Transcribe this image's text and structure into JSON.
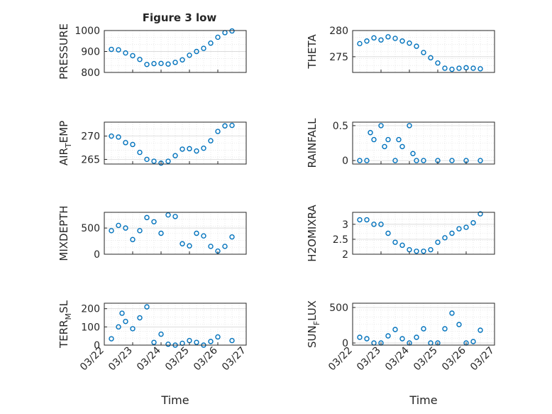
{
  "figure_title": "Figure 3 low",
  "colors": {
    "marker": "#0072BD",
    "axis": "#262626",
    "grid": "#dcdcdc",
    "background": "#ffffff"
  },
  "chart_data": [
    {
      "id": "pressure",
      "type": "scatter",
      "ylabel": "PRESSURE",
      "ylabel_sub": "",
      "ylabel_suffix": "",
      "xlabel": "",
      "xlim": [
        "03/22",
        "03/27"
      ],
      "ylim": [
        800,
        1000
      ],
      "yticks": [
        800,
        900,
        1000
      ],
      "grid": true,
      "points": [
        [
          "03/22 06:00",
          910
        ],
        [
          "03/22 12:00",
          908
        ],
        [
          "03/22 18:00",
          893
        ],
        [
          "03/23 00:00",
          880
        ],
        [
          "03/23 06:00",
          862
        ],
        [
          "03/23 12:00",
          838
        ],
        [
          "03/23 18:00",
          842
        ],
        [
          "03/24 00:00",
          843
        ],
        [
          "03/24 06:00",
          840
        ],
        [
          "03/24 12:00",
          848
        ],
        [
          "03/24 18:00",
          860
        ],
        [
          "03/25 00:00",
          882
        ],
        [
          "03/25 06:00",
          900
        ],
        [
          "03/25 12:00",
          915
        ],
        [
          "03/25 18:00",
          940
        ],
        [
          "03/26 00:00",
          968
        ],
        [
          "03/26 06:00",
          990
        ],
        [
          "03/26 12:00",
          998
        ]
      ]
    },
    {
      "id": "theta",
      "type": "scatter",
      "ylabel": "THETA",
      "ylabel_sub": "",
      "ylabel_suffix": "",
      "xlabel": "",
      "xlim": [
        "03/22",
        "03/27"
      ],
      "ylim": [
        272,
        280
      ],
      "yticks": [
        275,
        280
      ],
      "grid": true,
      "points": [
        [
          "03/22 06:00",
          277.5
        ],
        [
          "03/22 12:00",
          278
        ],
        [
          "03/22 18:00",
          278.6
        ],
        [
          "03/23 00:00",
          278.2
        ],
        [
          "03/23 06:00",
          278.8
        ],
        [
          "03/23 12:00",
          278.5
        ],
        [
          "03/23 18:00",
          278
        ],
        [
          "03/24 00:00",
          277.6
        ],
        [
          "03/24 06:00",
          277
        ],
        [
          "03/24 12:00",
          275.8
        ],
        [
          "03/24 18:00",
          274.8
        ],
        [
          "03/25 00:00",
          273.8
        ],
        [
          "03/25 06:00",
          272.8
        ],
        [
          "03/25 12:00",
          272.6
        ],
        [
          "03/25 18:00",
          272.8
        ],
        [
          "03/26 00:00",
          272.9
        ],
        [
          "03/26 06:00",
          272.8
        ],
        [
          "03/26 12:00",
          272.7
        ]
      ]
    },
    {
      "id": "air_temp",
      "type": "scatter",
      "ylabel": "AIR",
      "ylabel_sub": "T",
      "ylabel_suffix": "EMP",
      "xlabel": "",
      "xlim": [
        "03/22",
        "03/27"
      ],
      "ylim": [
        264,
        273
      ],
      "yticks": [
        265,
        270
      ],
      "grid": true,
      "points": [
        [
          "03/22 06:00",
          270
        ],
        [
          "03/22 12:00",
          269.8
        ],
        [
          "03/22 18:00",
          268.6
        ],
        [
          "03/23 00:00",
          268.2
        ],
        [
          "03/23 06:00",
          266.5
        ],
        [
          "03/23 12:00",
          265
        ],
        [
          "03/23 18:00",
          264.6
        ],
        [
          "03/24 00:00",
          264.2
        ],
        [
          "03/24 06:00",
          264.6
        ],
        [
          "03/24 12:00",
          265.8
        ],
        [
          "03/24 18:00",
          267.2
        ],
        [
          "03/25 00:00",
          267.3
        ],
        [
          "03/25 06:00",
          266.8
        ],
        [
          "03/25 12:00",
          267.4
        ],
        [
          "03/25 18:00",
          269
        ],
        [
          "03/26 00:00",
          271
        ],
        [
          "03/26 06:00",
          272.2
        ],
        [
          "03/26 12:00",
          272.3
        ]
      ]
    },
    {
      "id": "rainfall",
      "type": "scatter",
      "ylabel": "RAINFALL",
      "ylabel_sub": "",
      "ylabel_suffix": "",
      "xlabel": "",
      "xlim": [
        "03/22",
        "03/27"
      ],
      "ylim": [
        -0.05,
        0.55
      ],
      "yticks": [
        0,
        0.5
      ],
      "grid": true,
      "points": [
        [
          "03/22 06:00",
          0
        ],
        [
          "03/22 12:00",
          0
        ],
        [
          "03/22 15:00",
          0.4
        ],
        [
          "03/22 18:00",
          0.3
        ],
        [
          "03/23 00:00",
          0.5
        ],
        [
          "03/23 03:00",
          0.2
        ],
        [
          "03/23 06:00",
          0.3
        ],
        [
          "03/23 12:00",
          0
        ],
        [
          "03/23 15:00",
          0.3
        ],
        [
          "03/23 18:00",
          0.2
        ],
        [
          "03/24 00:00",
          0.5
        ],
        [
          "03/24 03:00",
          0.1
        ],
        [
          "03/24 06:00",
          0
        ],
        [
          "03/24 12:00",
          0
        ],
        [
          "03/25 00:00",
          0
        ],
        [
          "03/25 12:00",
          0
        ],
        [
          "03/26 00:00",
          0
        ],
        [
          "03/26 12:00",
          0
        ]
      ]
    },
    {
      "id": "mixdepth",
      "type": "scatter",
      "ylabel": "MIXDEPTH",
      "ylabel_sub": "",
      "ylabel_suffix": "",
      "xlabel": "",
      "xlim": [
        "03/22",
        "03/27"
      ],
      "ylim": [
        0,
        800
      ],
      "yticks": [
        0,
        500
      ],
      "grid": true,
      "points": [
        [
          "03/22 06:00",
          450
        ],
        [
          "03/22 12:00",
          550
        ],
        [
          "03/22 18:00",
          500
        ],
        [
          "03/23 00:00",
          280
        ],
        [
          "03/23 06:00",
          450
        ],
        [
          "03/23 12:00",
          700
        ],
        [
          "03/23 18:00",
          620
        ],
        [
          "03/24 00:00",
          400
        ],
        [
          "03/24 06:00",
          750
        ],
        [
          "03/24 12:00",
          720
        ],
        [
          "03/24 18:00",
          200
        ],
        [
          "03/25 00:00",
          160
        ],
        [
          "03/25 06:00",
          400
        ],
        [
          "03/25 12:00",
          350
        ],
        [
          "03/25 18:00",
          150
        ],
        [
          "03/26 00:00",
          60
        ],
        [
          "03/26 06:00",
          150
        ],
        [
          "03/26 12:00",
          330
        ]
      ]
    },
    {
      "id": "h2omixra",
      "type": "scatter",
      "ylabel": "H2OMIXRA",
      "ylabel_sub": "",
      "ylabel_suffix": "",
      "xlabel": "",
      "xlim": [
        "03/22",
        "03/27"
      ],
      "ylim": [
        2,
        3.4
      ],
      "yticks": [
        2,
        2.5,
        3
      ],
      "grid": true,
      "points": [
        [
          "03/22 06:00",
          3.15
        ],
        [
          "03/22 12:00",
          3.15
        ],
        [
          "03/22 18:00",
          3
        ],
        [
          "03/23 00:00",
          3
        ],
        [
          "03/23 06:00",
          2.7
        ],
        [
          "03/23 12:00",
          2.4
        ],
        [
          "03/23 18:00",
          2.3
        ],
        [
          "03/24 00:00",
          2.15
        ],
        [
          "03/24 06:00",
          2.1
        ],
        [
          "03/24 12:00",
          2.1
        ],
        [
          "03/24 18:00",
          2.15
        ],
        [
          "03/25 00:00",
          2.4
        ],
        [
          "03/25 06:00",
          2.55
        ],
        [
          "03/25 12:00",
          2.7
        ],
        [
          "03/25 18:00",
          2.85
        ],
        [
          "03/26 00:00",
          2.9
        ],
        [
          "03/26 06:00",
          3.05
        ],
        [
          "03/26 12:00",
          3.35
        ]
      ]
    },
    {
      "id": "terr_msl",
      "type": "scatter",
      "ylabel": "TERR",
      "ylabel_sub": "M",
      "ylabel_suffix": "SL",
      "xlabel": "Time",
      "xlim": [
        "03/22",
        "03/27"
      ],
      "ylim": [
        0,
        230
      ],
      "yticks": [
        0,
        100,
        200
      ],
      "grid": true,
      "xticks": [
        "03/22",
        "03/23",
        "03/24",
        "03/25",
        "03/26",
        "03/27"
      ],
      "points": [
        [
          "03/22 06:00",
          35
        ],
        [
          "03/22 12:00",
          100
        ],
        [
          "03/22 15:00",
          175
        ],
        [
          "03/22 18:00",
          130
        ],
        [
          "03/23 00:00",
          90
        ],
        [
          "03/23 06:00",
          150
        ],
        [
          "03/23 12:00",
          210
        ],
        [
          "03/23 18:00",
          15
        ],
        [
          "03/24 00:00",
          60
        ],
        [
          "03/24 06:00",
          5
        ],
        [
          "03/24 12:00",
          0
        ],
        [
          "03/24 18:00",
          10
        ],
        [
          "03/25 00:00",
          25
        ],
        [
          "03/25 06:00",
          15
        ],
        [
          "03/25 12:00",
          0
        ],
        [
          "03/25 18:00",
          20
        ],
        [
          "03/26 00:00",
          45
        ],
        [
          "03/26 12:00",
          25
        ]
      ]
    },
    {
      "id": "sun_flux",
      "type": "scatter",
      "ylabel": "SUN",
      "ylabel_sub": "F",
      "ylabel_suffix": "LUX",
      "xlabel": "Time",
      "xlim": [
        "03/22",
        "03/27"
      ],
      "ylim": [
        -30,
        560
      ],
      "yticks": [
        0,
        500
      ],
      "grid": true,
      "xticks": [
        "03/22",
        "03/23",
        "03/24",
        "03/25",
        "03/26",
        "03/27"
      ],
      "points": [
        [
          "03/22 06:00",
          80
        ],
        [
          "03/22 12:00",
          60
        ],
        [
          "03/22 18:00",
          0
        ],
        [
          "03/23 00:00",
          0
        ],
        [
          "03/23 06:00",
          100
        ],
        [
          "03/23 12:00",
          190
        ],
        [
          "03/23 18:00",
          60
        ],
        [
          "03/24 00:00",
          0
        ],
        [
          "03/24 06:00",
          80
        ],
        [
          "03/24 12:00",
          200
        ],
        [
          "03/24 18:00",
          0
        ],
        [
          "03/25 00:00",
          0
        ],
        [
          "03/25 06:00",
          200
        ],
        [
          "03/25 12:00",
          420
        ],
        [
          "03/25 18:00",
          260
        ],
        [
          "03/26 00:00",
          0
        ],
        [
          "03/26 06:00",
          20
        ],
        [
          "03/26 12:00",
          180
        ]
      ]
    }
  ]
}
